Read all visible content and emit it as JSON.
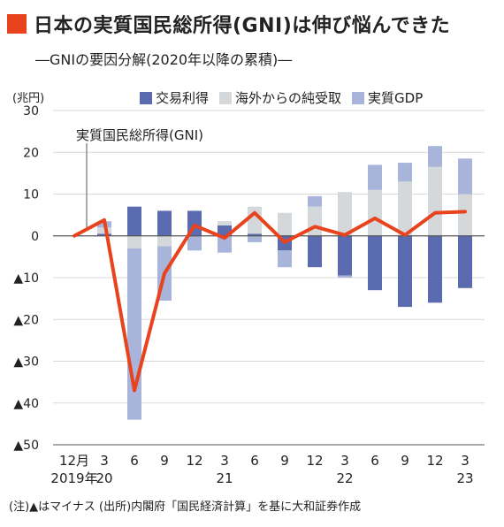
{
  "title": "日本の実質国民総所得(GNI)は伸び悩んできた",
  "subtitle": "―GNIの要因分解(2020年以降の累積)―",
  "unit_label": "(兆円)",
  "footnote": "(注)▲はマイナス (出所)内閣府「国民経済計算」を基に大和証券作成",
  "colors": {
    "title_marker": "#e8431d",
    "trade": "#5b6bb0",
    "overseas": "#d4d8db",
    "gdp": "#a9b4da",
    "gni_line": "#e8431d"
  },
  "chart_data": {
    "type": "bar",
    "stacked": true,
    "categories": [
      "12月",
      "3",
      "6",
      "9",
      "12",
      "3",
      "6",
      "9",
      "12",
      "3",
      "6",
      "9",
      "12",
      "3"
    ],
    "year_labels": [
      {
        "index": 0,
        "label": "2019年"
      },
      {
        "index": 1,
        "label": "20"
      },
      {
        "index": 5,
        "label": "21"
      },
      {
        "index": 9,
        "label": "22"
      },
      {
        "index": 13,
        "label": "23"
      }
    ],
    "ylim": [
      -50,
      30
    ],
    "yticks": [
      30,
      20,
      10,
      0,
      -10,
      -20,
      -30,
      -40,
      -50
    ],
    "ytick_labels": [
      "30",
      "20",
      "10",
      "0",
      "▲10",
      "▲20",
      "▲30",
      "▲40",
      "▲50"
    ],
    "series": [
      {
        "name": "交易利得",
        "values": [
          0,
          0.5,
          7,
          6,
          6,
          2.5,
          0.5,
          -3.5,
          -7.5,
          -9.5,
          -13,
          -17,
          -16,
          -12.5
        ]
      },
      {
        "name": "海外からの純受取",
        "values": [
          0,
          1.5,
          -3,
          -2.5,
          0,
          1,
          6.5,
          5.5,
          7,
          10.5,
          11,
          13,
          16.5,
          10
        ]
      },
      {
        "name": "実質GDP",
        "values": [
          0,
          1.5,
          -41,
          -13,
          -3.5,
          -4,
          -1.5,
          -4,
          2.5,
          -0.5,
          6,
          4.5,
          5,
          8.5
        ]
      }
    ],
    "line": {
      "name": "実質国民総所得(GNI)",
      "values": [
        0,
        3.8,
        -37,
        -9,
        2.5,
        -0.5,
        5.5,
        -1.5,
        2.2,
        0.2,
        4.2,
        0.2,
        5.5,
        5.8
      ]
    },
    "annotation": "実質国民総所得(GNI)",
    "grid": true,
    "legend_position": "top"
  }
}
